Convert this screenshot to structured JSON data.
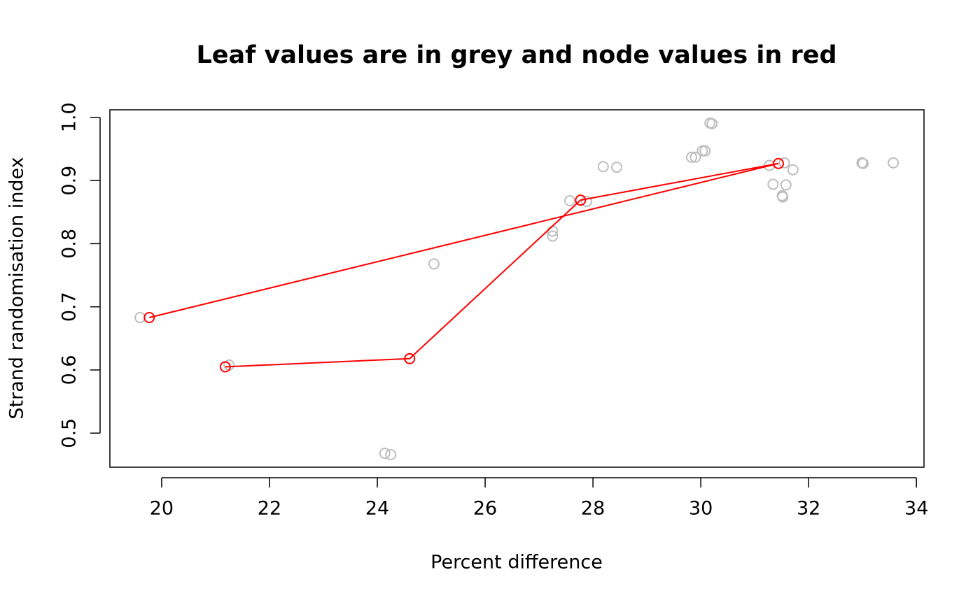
{
  "chart_data": {
    "type": "scatter",
    "title": "Leaf values are in grey and node values in red",
    "xlabel": "Percent difference",
    "ylabel": "Strand randomisation index",
    "xlim": [
      19.04,
      34.14
    ],
    "ylim": [
      0.446,
      1.012
    ],
    "xticks": [
      20,
      22,
      24,
      26,
      28,
      30,
      32,
      34
    ],
    "yticks": [
      0.5,
      0.6,
      0.7,
      0.8,
      0.9,
      {
        "value": 1,
        "label": "1.0"
      }
    ],
    "series": [
      {
        "color": "#bebebe",
        "x": [
          19.6,
          21.25,
          24.14,
          24.25,
          25.05,
          27.25,
          27.25,
          27.57,
          27.88,
          28.19,
          28.44,
          29.83,
          29.9,
          30.03,
          30.08,
          30.17,
          30.21,
          31.27,
          31.34,
          31.55,
          31.51,
          31.52,
          31.58,
          31.71,
          32.99,
          33.01,
          33.57
        ],
        "values": [
          0.683,
          0.608,
          0.468,
          0.466,
          0.768,
          0.82,
          0.812,
          0.868,
          0.867,
          0.922,
          0.921,
          0.937,
          0.937,
          0.947,
          0.947,
          0.991,
          0.99,
          0.924,
          0.894,
          0.928,
          0.876,
          0.874,
          0.893,
          0.917,
          0.928,
          0.927,
          0.928
        ]
      },
      {
        "color": "#ff0000",
        "line": true,
        "x": [
          21.18,
          24.6,
          27.77,
          31.44,
          19.77
        ],
        "values": [
          0.605,
          0.618,
          0.869,
          0.927,
          0.683
        ]
      }
    ]
  }
}
